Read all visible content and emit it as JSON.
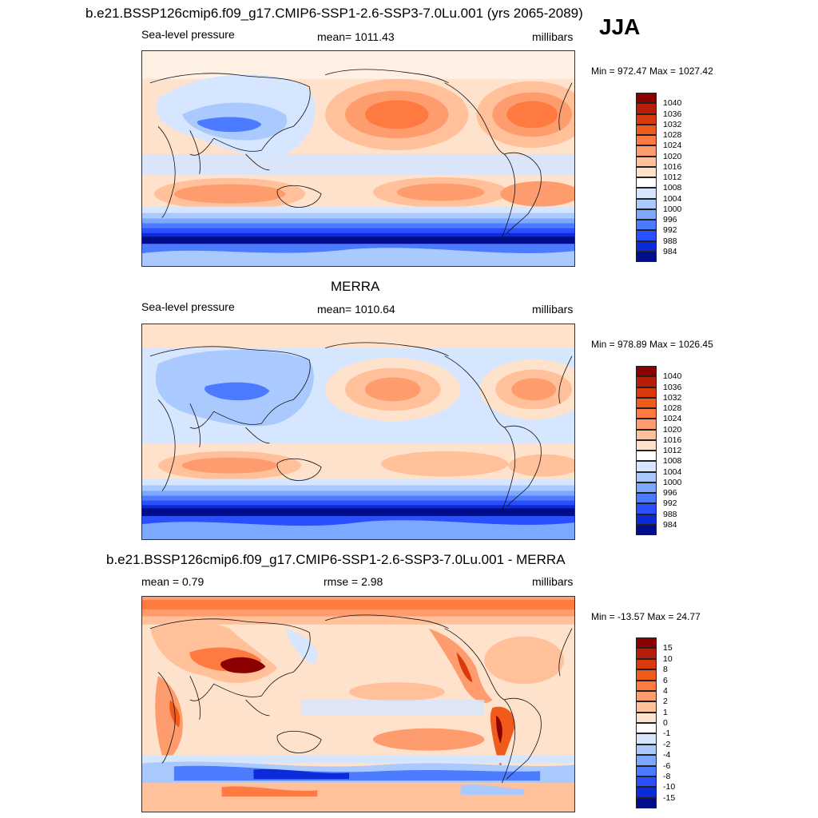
{
  "season": "JJA",
  "panels": [
    {
      "title": "b.e21.BSSP126cmip6.f09_g17.CMIP6-SSP1-2.6-SSP3-7.0Lu.001 (yrs 2065-2089)",
      "left_label": "Sea-level pressure",
      "center_label": "mean= 1011.43",
      "right_label": "millibars",
      "minmax": "Min = 972.47 Max = 1027.42",
      "colorbar": {
        "labels": [
          "1040",
          "1036",
          "1032",
          "1028",
          "1024",
          "1020",
          "1016",
          "1012",
          "1008",
          "1004",
          "1000",
          "996",
          "992",
          "988",
          "984"
        ],
        "colors": [
          "#8b0000",
          "#b71e0a",
          "#d83a0c",
          "#f05a1a",
          "#ff7a40",
          "#ff9c6e",
          "#ffc09a",
          "#ffe2cc",
          "#ffffff",
          "#d6e6ff",
          "#aacaff",
          "#7da8ff",
          "#4d7bff",
          "#2a4fff",
          "#0d2ad8",
          "#000e8c"
        ]
      }
    },
    {
      "title": "MERRA",
      "left_label": "Sea-level pressure",
      "center_label": "mean= 1010.64",
      "right_label": "millibars",
      "minmax": "Min = 978.89 Max = 1026.45",
      "colorbar": {
        "labels": [
          "1040",
          "1036",
          "1032",
          "1028",
          "1024",
          "1020",
          "1016",
          "1012",
          "1008",
          "1004",
          "1000",
          "996",
          "992",
          "988",
          "984"
        ],
        "colors": [
          "#8b0000",
          "#b71e0a",
          "#d83a0c",
          "#f05a1a",
          "#ff7a40",
          "#ff9c6e",
          "#ffc09a",
          "#ffe2cc",
          "#ffffff",
          "#d6e6ff",
          "#aacaff",
          "#7da8ff",
          "#4d7bff",
          "#2a4fff",
          "#0d2ad8",
          "#000e8c"
        ]
      }
    },
    {
      "title": "b.e21.BSSP126cmip6.f09_g17.CMIP6-SSP1-2.6-SSP3-7.0Lu.001 - MERRA",
      "left_label": "mean =   0.79",
      "center_label": "rmse =   2.98",
      "right_label": "millibars",
      "minmax": "Min = -13.57 Max =  24.77",
      "colorbar": {
        "labels": [
          "15",
          "10",
          "8",
          "6",
          "4",
          "2",
          "1",
          "0",
          "-1",
          "-2",
          "-4",
          "-6",
          "-8",
          "-10",
          "-15"
        ],
        "colors": [
          "#8b0000",
          "#b71e0a",
          "#d83a0c",
          "#f05a1a",
          "#ff7a40",
          "#ff9c6e",
          "#ffc09a",
          "#ffe2cc",
          "#ffffff",
          "#d6e6ff",
          "#aacaff",
          "#7da8ff",
          "#4d7bff",
          "#2a4fff",
          "#0d2ad8",
          "#000e8c"
        ]
      }
    }
  ]
}
